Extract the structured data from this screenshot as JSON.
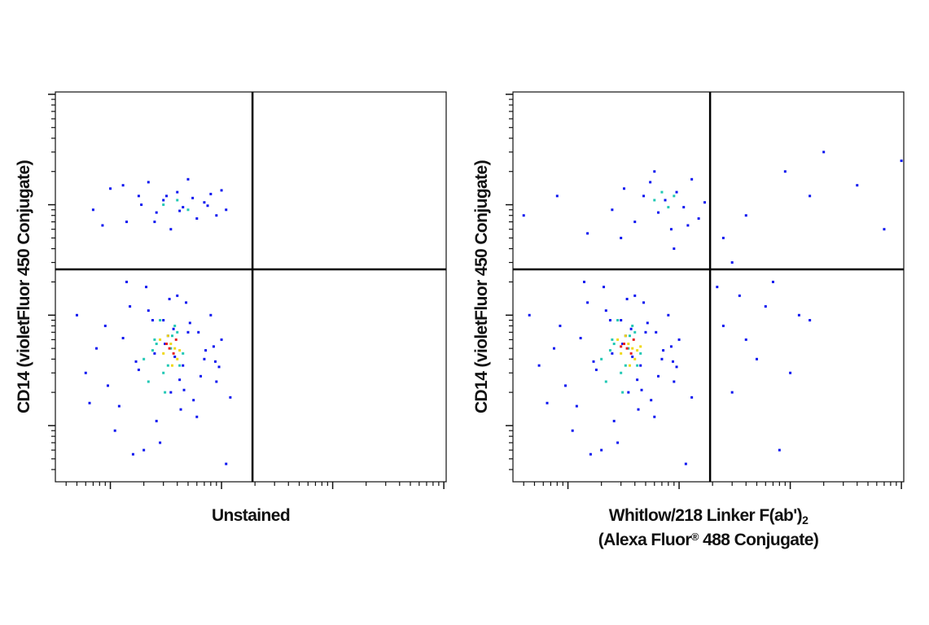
{
  "chart_data": [
    {
      "type": "scatter",
      "xscale": "log",
      "yscale": "log",
      "ylabel": "CD14 (violetFluor 450 Conjugate)",
      "xlabel": [
        {
          "text": "Unstained"
        }
      ],
      "xlim": [
        32,
        105000
      ],
      "ylim": [
        31,
        105000
      ],
      "xticks": [
        100,
        1000,
        10000,
        100000
      ],
      "yticks": [
        100,
        1000,
        10000,
        100000
      ],
      "gates": {
        "x": 1900,
        "y": 2600
      },
      "series": [
        {
          "color": "#0a14f0",
          "x": [
            60,
            90,
            120,
            150,
            200,
            250,
            300,
            350,
            400,
            450,
            500,
            600,
            700,
            800,
            900,
            1000,
            1200,
            75,
            110,
            140,
            180,
            220,
            280,
            330,
            380,
            430,
            520,
            650,
            850,
            1100,
            50,
            95,
            130,
            170,
            210,
            260,
            310,
            370,
            420,
            480,
            560,
            720,
            950,
            65,
            160,
            240,
            340,
            460,
            620,
            880,
            70,
            100,
            140,
            180,
            220,
            260,
            300,
            350,
            400,
            450,
            500,
            600,
            700,
            800,
            900,
            1100,
            85,
            130,
            190,
            250,
            320,
            420,
            550,
            750,
            1000
          ],
          "y": [
            300,
            800,
            150,
            1200,
            60,
            450,
            900,
            200,
            1500,
            350,
            700,
            120,
            400,
            1000,
            250,
            600,
            180,
            500,
            90,
            2000,
            320,
            1100,
            70,
            650,
            420,
            140,
            850,
            280,
            520,
            45,
            1000,
            230,
            620,
            380,
            1800,
            110,
            550,
            750,
            260,
            1300,
            170,
            480,
            340,
            160,
            55,
            900,
            1400,
            210,
            700,
            380,
            9000,
            14000,
            7000,
            12000,
            16000,
            8500,
            11000,
            6000,
            13000,
            9500,
            17000,
            7500,
            10500,
            12500,
            8000,
            9000,
            6500,
            15000,
            10000,
            7000,
            12000,
            8800,
            11500,
            9800,
            13500
          ]
        },
        {
          "color": "#20c8b4",
          "x": [
            200,
            250,
            300,
            350,
            400,
            280,
            330,
            220,
            450,
            380,
            260,
            310,
            420,
            360,
            240,
            300,
            400,
            500
          ],
          "y": [
            400,
            600,
            300,
            500,
            700,
            900,
            350,
            250,
            450,
            800,
            550,
            200,
            350,
            650,
            480,
            10000,
            11000,
            9000
          ]
        },
        {
          "color": "#f0d814",
          "x": [
            300,
            350,
            400,
            330,
            380,
            280,
            420,
            360
          ],
          "y": [
            450,
            550,
            400,
            650,
            500,
            600,
            480,
            350
          ]
        },
        {
          "color": "#e61e1e",
          "x": [
            340,
            370,
            320,
            390
          ],
          "y": [
            500,
            450,
            550,
            600
          ]
        }
      ]
    },
    {
      "type": "scatter",
      "xscale": "log",
      "yscale": "log",
      "ylabel": "CD14 (violetFluor 450 Conjugate)",
      "xlabel": [
        {
          "text": "Whitlow/218 Linker F(ab')",
          "sub": "2"
        },
        {
          "text": "(Alexa Fluor",
          "sup": "®",
          "tail": " 488 Conjugate)"
        }
      ],
      "xlim": [
        32,
        105000
      ],
      "ylim": [
        31,
        105000
      ],
      "xticks": [
        100,
        1000,
        10000,
        100000
      ],
      "yticks": [
        100,
        1000,
        10000,
        100000
      ],
      "gates": {
        "x": 1900,
        "y": 2600
      },
      "series": [
        {
          "color": "#0a14f0",
          "x": [
            55,
            85,
            120,
            150,
            200,
            250,
            300,
            350,
            400,
            450,
            500,
            600,
            700,
            800,
            900,
            1000,
            1300,
            75,
            110,
            140,
            180,
            220,
            280,
            330,
            380,
            430,
            520,
            650,
            850,
            1150,
            45,
            95,
            130,
            170,
            210,
            260,
            310,
            370,
            420,
            480,
            560,
            720,
            950,
            65,
            160,
            240,
            340,
            460,
            620,
            880,
            250,
            320,
            400,
            480,
            550,
            650,
            750,
            850,
            950,
            1100,
            1300,
            1500,
            1700,
            300,
            600,
            900,
            1200,
            40,
            80,
            150,
            2500,
            3500,
            5000,
            7000,
            10000,
            4000,
            6000,
            15000,
            3000,
            8000,
            2200,
            12000,
            2500,
            4000,
            9000,
            20000,
            40000,
            70000,
            100000,
            3000,
            15000
          ],
          "y": [
            350,
            800,
            150,
            1300,
            60,
            450,
            900,
            200,
            1500,
            350,
            700,
            120,
            400,
            1000,
            250,
            600,
            180,
            500,
            90,
            2000,
            320,
            1100,
            70,
            650,
            420,
            140,
            850,
            280,
            520,
            45,
            1000,
            230,
            620,
            380,
            1800,
            110,
            550,
            750,
            260,
            1300,
            170,
            480,
            340,
            160,
            55,
            900,
            1400,
            210,
            700,
            380,
            9000,
            14000,
            7000,
            12000,
            16000,
            8500,
            11000,
            6000,
            13000,
            9500,
            17000,
            7500,
            10500,
            5000,
            20000,
            4000,
            6500,
            8000,
            12000,
            5500,
            800,
            1500,
            400,
            2000,
            300,
            600,
            1200,
            900,
            200,
            60,
            1800,
            1000,
            5000,
            8000,
            20000,
            30000,
            15000,
            6000,
            25000,
            3000,
            12000
          ]
        },
        {
          "color": "#20c8b4",
          "x": [
            200,
            250,
            300,
            350,
            400,
            280,
            330,
            220,
            450,
            380,
            260,
            310,
            420,
            360,
            240,
            600,
            700,
            800,
            900
          ],
          "y": [
            400,
            600,
            300,
            500,
            700,
            900,
            350,
            250,
            450,
            800,
            550,
            200,
            350,
            650,
            480,
            11000,
            13000,
            9500,
            12000
          ]
        },
        {
          "color": "#f0d814",
          "x": [
            300,
            350,
            400,
            330,
            380,
            280,
            420,
            360,
            450
          ],
          "y": [
            450,
            550,
            400,
            650,
            500,
            600,
            480,
            350,
            520
          ]
        },
        {
          "color": "#e61e1e",
          "x": [
            340,
            370,
            320,
            390,
            300
          ],
          "y": [
            500,
            450,
            550,
            600,
            520
          ]
        }
      ]
    }
  ]
}
